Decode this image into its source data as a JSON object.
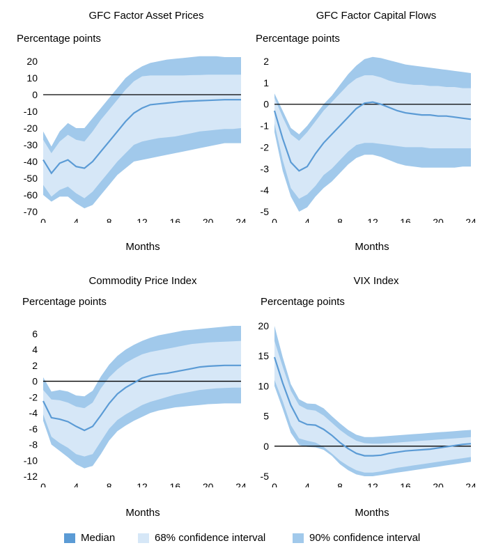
{
  "colors": {
    "median": "#5b9bd5",
    "ci68": "#d6e7f7",
    "ci90": "#a1c9eb",
    "zero": "#000000"
  },
  "legend": [
    {
      "label": "Median",
      "color": "#5b9bd5"
    },
    {
      "label": "68% confidence interval",
      "color": "#d6e7f7"
    },
    {
      "label": "90% confidence interval",
      "color": "#a1c9eb"
    }
  ],
  "chart_data": [
    {
      "type": "area",
      "title": "GFC Factor Asset Prices",
      "ylabel": "Percentage points",
      "xlabel": "Months",
      "xlim": [
        0,
        24
      ],
      "xticks": [
        0,
        4,
        8,
        12,
        16,
        20,
        24
      ],
      "ylim": [
        -70,
        20
      ],
      "yticks": [
        20,
        10,
        0,
        -10,
        -20,
        -30,
        -40,
        -50,
        -60,
        -70
      ],
      "x": [
        0,
        1,
        2,
        3,
        4,
        5,
        6,
        7,
        8,
        9,
        10,
        11,
        12,
        13,
        14,
        15,
        16,
        17,
        18,
        19,
        20,
        21,
        22,
        23,
        24
      ],
      "median": [
        -39,
        -47,
        -41,
        -39,
        -43,
        -44,
        -40,
        -34,
        -28,
        -22,
        -16,
        -11,
        -8,
        -6,
        -5.5,
        -5,
        -4.5,
        -4,
        -3.8,
        -3.6,
        -3.4,
        -3.2,
        -3,
        -3,
        -3
      ],
      "ci68_upper": [
        -27,
        -35,
        -28,
        -24,
        -27,
        -28,
        -22,
        -15,
        -9,
        -3,
        3,
        8,
        11,
        11.5,
        11.5,
        11.5,
        11.5,
        11.5,
        11.7,
        11.8,
        12,
        12,
        12,
        12,
        12
      ],
      "ci68_lower": [
        -54,
        -61,
        -57,
        -55,
        -59,
        -62,
        -58,
        -52,
        -46,
        -40,
        -35,
        -30,
        -28,
        -27,
        -26,
        -25.5,
        -25,
        -24,
        -23,
        -22,
        -21.5,
        -21,
        -20.5,
        -20.5,
        -20
      ],
      "ci90_upper": [
        -22,
        -31,
        -22,
        -17,
        -20,
        -20,
        -14,
        -8,
        -2,
        4,
        10,
        14,
        17,
        19,
        20,
        21,
        21.5,
        22,
        22.5,
        23,
        23,
        23,
        22.5,
        22.5,
        22.5
      ],
      "ci90_lower": [
        -60,
        -64,
        -61,
        -61,
        -65,
        -68,
        -66,
        -60,
        -54,
        -48,
        -44,
        -40,
        -39,
        -38,
        -37,
        -36,
        -35,
        -34,
        -33,
        -32,
        -31,
        -30,
        -29,
        -29,
        -29
      ]
    },
    {
      "type": "area",
      "title": "GFC Factor Capital Flows",
      "ylabel": "Percentage points",
      "xlabel": "Months",
      "xlim": [
        0,
        24
      ],
      "xticks": [
        0,
        4,
        8,
        12,
        16,
        20,
        24
      ],
      "ylim": [
        -5,
        2
      ],
      "yticks": [
        2,
        1,
        0,
        -1,
        -2,
        -3,
        -4,
        -5
      ],
      "x": [
        0,
        1,
        2,
        3,
        4,
        5,
        6,
        7,
        8,
        9,
        10,
        11,
        12,
        13,
        14,
        15,
        16,
        17,
        18,
        19,
        20,
        21,
        22,
        23,
        24
      ],
      "median": [
        -0.3,
        -1.6,
        -2.7,
        -3.1,
        -2.9,
        -2.3,
        -1.8,
        -1.4,
        -1.0,
        -0.6,
        -0.2,
        0.05,
        0.1,
        0.0,
        -0.15,
        -0.3,
        -0.4,
        -0.45,
        -0.5,
        -0.5,
        -0.55,
        -0.55,
        -0.6,
        -0.65,
        -0.7
      ],
      "ci68_upper": [
        0.3,
        -0.6,
        -1.4,
        -1.7,
        -1.3,
        -0.8,
        -0.3,
        0.1,
        0.5,
        0.9,
        1.2,
        1.35,
        1.35,
        1.25,
        1.1,
        1.0,
        0.95,
        0.9,
        0.9,
        0.85,
        0.85,
        0.8,
        0.8,
        0.75,
        0.75
      ],
      "ci68_lower": [
        -0.9,
        -2.6,
        -3.9,
        -4.4,
        -4.2,
        -3.8,
        -3.3,
        -3.0,
        -2.6,
        -2.2,
        -1.9,
        -1.8,
        -1.8,
        -1.85,
        -1.9,
        -1.95,
        -2.0,
        -2.0,
        -2.0,
        -2.05,
        -2.05,
        -2.05,
        -2.05,
        -2.05,
        -2.05
      ],
      "ci90_upper": [
        0.5,
        -0.3,
        -1.1,
        -1.4,
        -1.0,
        -0.5,
        0.0,
        0.4,
        0.9,
        1.4,
        1.8,
        2.1,
        2.2,
        2.15,
        2.05,
        1.95,
        1.85,
        1.8,
        1.75,
        1.7,
        1.65,
        1.6,
        1.55,
        1.5,
        1.45
      ],
      "ci90_lower": [
        -1.3,
        -3.1,
        -4.3,
        -5.0,
        -4.8,
        -4.3,
        -3.9,
        -3.6,
        -3.2,
        -2.8,
        -2.5,
        -2.35,
        -2.35,
        -2.45,
        -2.6,
        -2.75,
        -2.85,
        -2.9,
        -2.95,
        -2.95,
        -2.95,
        -2.95,
        -2.95,
        -2.9,
        -2.9
      ]
    },
    {
      "type": "area",
      "title": "Commodity Price Index",
      "ylabel": "Percentage points",
      "xlabel": "Months",
      "xlim": [
        0,
        24
      ],
      "xticks": [
        0,
        4,
        8,
        12,
        16,
        20,
        24
      ],
      "ylim": [
        -12,
        7
      ],
      "yticks": [
        6,
        4,
        2,
        0,
        -2,
        -4,
        -6,
        -8,
        -10,
        -12
      ],
      "x": [
        0,
        1,
        2,
        3,
        4,
        5,
        6,
        7,
        8,
        9,
        10,
        11,
        12,
        13,
        14,
        15,
        16,
        17,
        18,
        19,
        20,
        21,
        22,
        23,
        24
      ],
      "median": [
        -2.5,
        -4.6,
        -4.8,
        -5.1,
        -5.7,
        -6.2,
        -5.7,
        -4.3,
        -2.8,
        -1.6,
        -0.8,
        -0.2,
        0.4,
        0.7,
        0.9,
        1.0,
        1.2,
        1.4,
        1.6,
        1.8,
        1.9,
        1.95,
        2.0,
        2.0,
        2.0
      ],
      "ci68_upper": [
        -1.1,
        -2.3,
        -2.4,
        -2.7,
        -3.2,
        -3.4,
        -2.7,
        -0.9,
        0.5,
        1.5,
        2.3,
        2.9,
        3.4,
        3.7,
        3.9,
        4.1,
        4.3,
        4.5,
        4.7,
        4.8,
        4.9,
        4.95,
        5.0,
        5.05,
        5.1
      ],
      "ci68_lower": [
        -4.2,
        -7.0,
        -7.8,
        -8.4,
        -9.2,
        -9.5,
        -9.2,
        -7.6,
        -6.0,
        -4.9,
        -4.2,
        -3.6,
        -3.0,
        -2.6,
        -2.3,
        -2.0,
        -1.7,
        -1.5,
        -1.3,
        -1.1,
        -1.0,
        -0.9,
        -0.85,
        -0.8,
        -0.8
      ],
      "ci90_upper": [
        0.5,
        -1.3,
        -1.1,
        -1.3,
        -1.8,
        -1.9,
        -1.2,
        0.6,
        2.1,
        3.2,
        4.0,
        4.6,
        5.1,
        5.5,
        5.8,
        6.0,
        6.2,
        6.4,
        6.5,
        6.6,
        6.7,
        6.8,
        6.9,
        7.0,
        7.0
      ],
      "ci90_lower": [
        -5.0,
        -8.0,
        -8.8,
        -9.6,
        -10.5,
        -11.0,
        -10.7,
        -9.2,
        -7.5,
        -6.3,
        -5.6,
        -5.0,
        -4.5,
        -4.0,
        -3.7,
        -3.5,
        -3.3,
        -3.2,
        -3.1,
        -3.0,
        -2.9,
        -2.85,
        -2.8,
        -2.8,
        -2.8
      ]
    },
    {
      "type": "area",
      "title": "VIX Index",
      "ylabel": "Percentage points",
      "xlabel": "Months",
      "xlim": [
        0,
        24
      ],
      "xticks": [
        0,
        4,
        8,
        12,
        16,
        20,
        24
      ],
      "ylim": [
        -5,
        20
      ],
      "yticks": [
        20,
        15,
        10,
        5,
        0,
        -5
      ],
      "x": [
        0,
        1,
        2,
        3,
        4,
        5,
        6,
        7,
        8,
        9,
        10,
        11,
        12,
        13,
        14,
        15,
        16,
        17,
        18,
        19,
        20,
        21,
        22,
        23,
        24
      ],
      "median": [
        14.8,
        10.5,
        6.8,
        4.2,
        3.6,
        3.5,
        2.8,
        1.8,
        0.6,
        -0.4,
        -1.2,
        -1.6,
        -1.6,
        -1.5,
        -1.2,
        -1.0,
        -0.8,
        -0.7,
        -0.6,
        -0.5,
        -0.3,
        -0.1,
        0.1,
        0.3,
        0.4
      ],
      "ci68_upper": [
        17.5,
        13.2,
        9.2,
        6.8,
        6.1,
        5.9,
        5.1,
        3.9,
        2.7,
        1.7,
        0.9,
        0.5,
        0.4,
        0.4,
        0.5,
        0.6,
        0.7,
        0.8,
        0.9,
        1.0,
        1.1,
        1.2,
        1.3,
        1.4,
        1.5
      ],
      "ci68_lower": [
        11.0,
        7.5,
        3.5,
        1.3,
        0.9,
        0.6,
        -0.1,
        -1.2,
        -2.4,
        -3.3,
        -4.0,
        -4.4,
        -4.4,
        -4.2,
        -3.9,
        -3.6,
        -3.4,
        -3.2,
        -3.0,
        -2.8,
        -2.6,
        -2.4,
        -2.2,
        -2.0,
        -1.8
      ],
      "ci90_upper": [
        20.0,
        14.8,
        10.3,
        7.8,
        7.1,
        7.0,
        6.3,
        5.0,
        3.8,
        2.7,
        1.9,
        1.5,
        1.5,
        1.6,
        1.7,
        1.8,
        1.9,
        2.0,
        2.1,
        2.2,
        2.3,
        2.4,
        2.5,
        2.6,
        2.7
      ],
      "ci90_lower": [
        10.0,
        6.2,
        2.2,
        0.2,
        -0.1,
        -0.2,
        -0.6,
        -1.6,
        -3.0,
        -4.0,
        -4.7,
        -5.0,
        -5.0,
        -4.8,
        -4.6,
        -4.4,
        -4.2,
        -4.0,
        -3.8,
        -3.6,
        -3.4,
        -3.2,
        -3.0,
        -2.8,
        -2.6
      ]
    }
  ]
}
